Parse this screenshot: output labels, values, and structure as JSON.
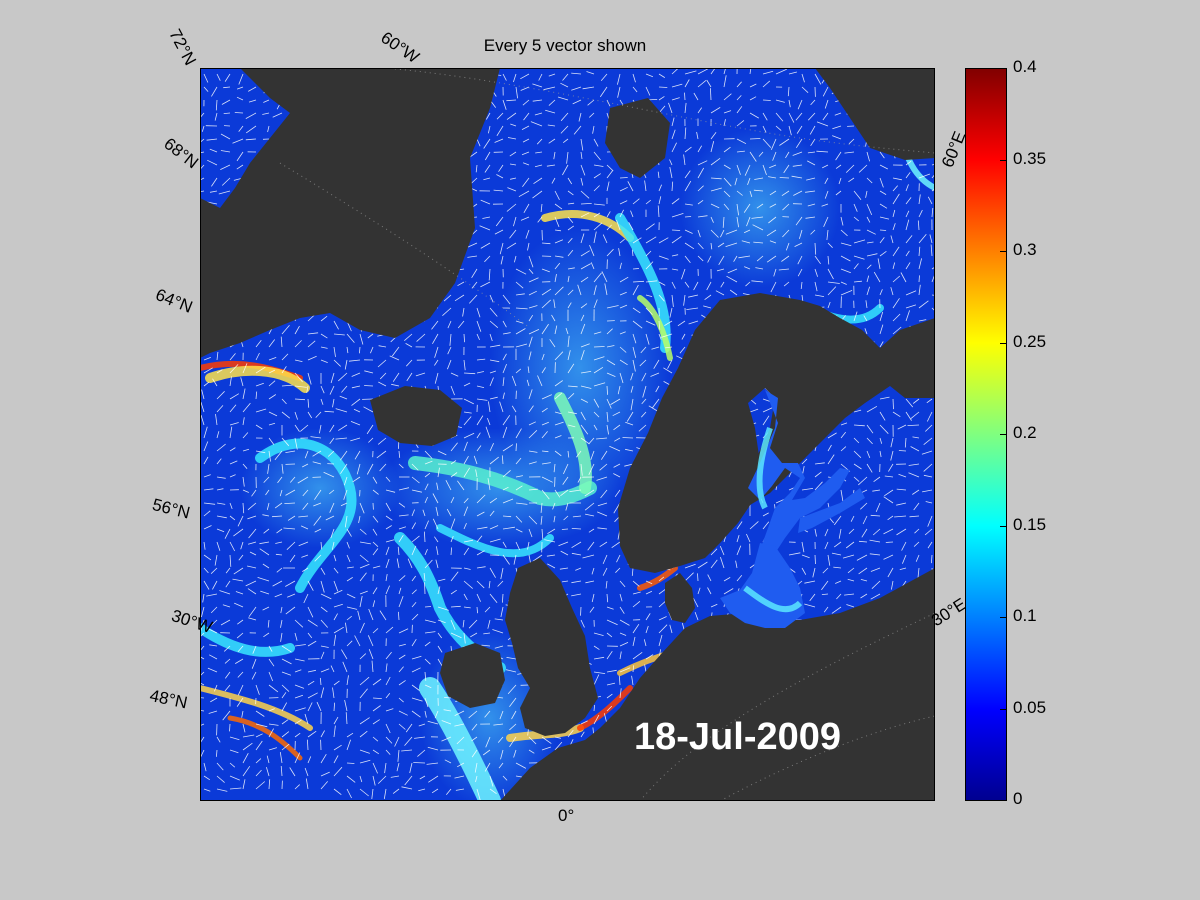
{
  "title": "Every 5 vector shown",
  "date_label": "18-Jul-2009",
  "lat_labels": [
    "72°N",
    "68°N",
    "64°N",
    "56°N",
    "48°N"
  ],
  "lon_labels": [
    "60°W",
    "30°W",
    "0°",
    "30°E",
    "60°E"
  ],
  "colorbar": {
    "ticks": [
      "0",
      "0.05",
      "0.1",
      "0.15",
      "0.2",
      "0.25",
      "0.3",
      "0.35",
      "0.4"
    ],
    "min": 0,
    "max": 0.4,
    "colormap": "jet"
  },
  "colors": {
    "figure_background": "#c8c8c8",
    "land": "#333333",
    "ocean_low": "#0b3ad8",
    "vectors": "#ffffff"
  }
}
